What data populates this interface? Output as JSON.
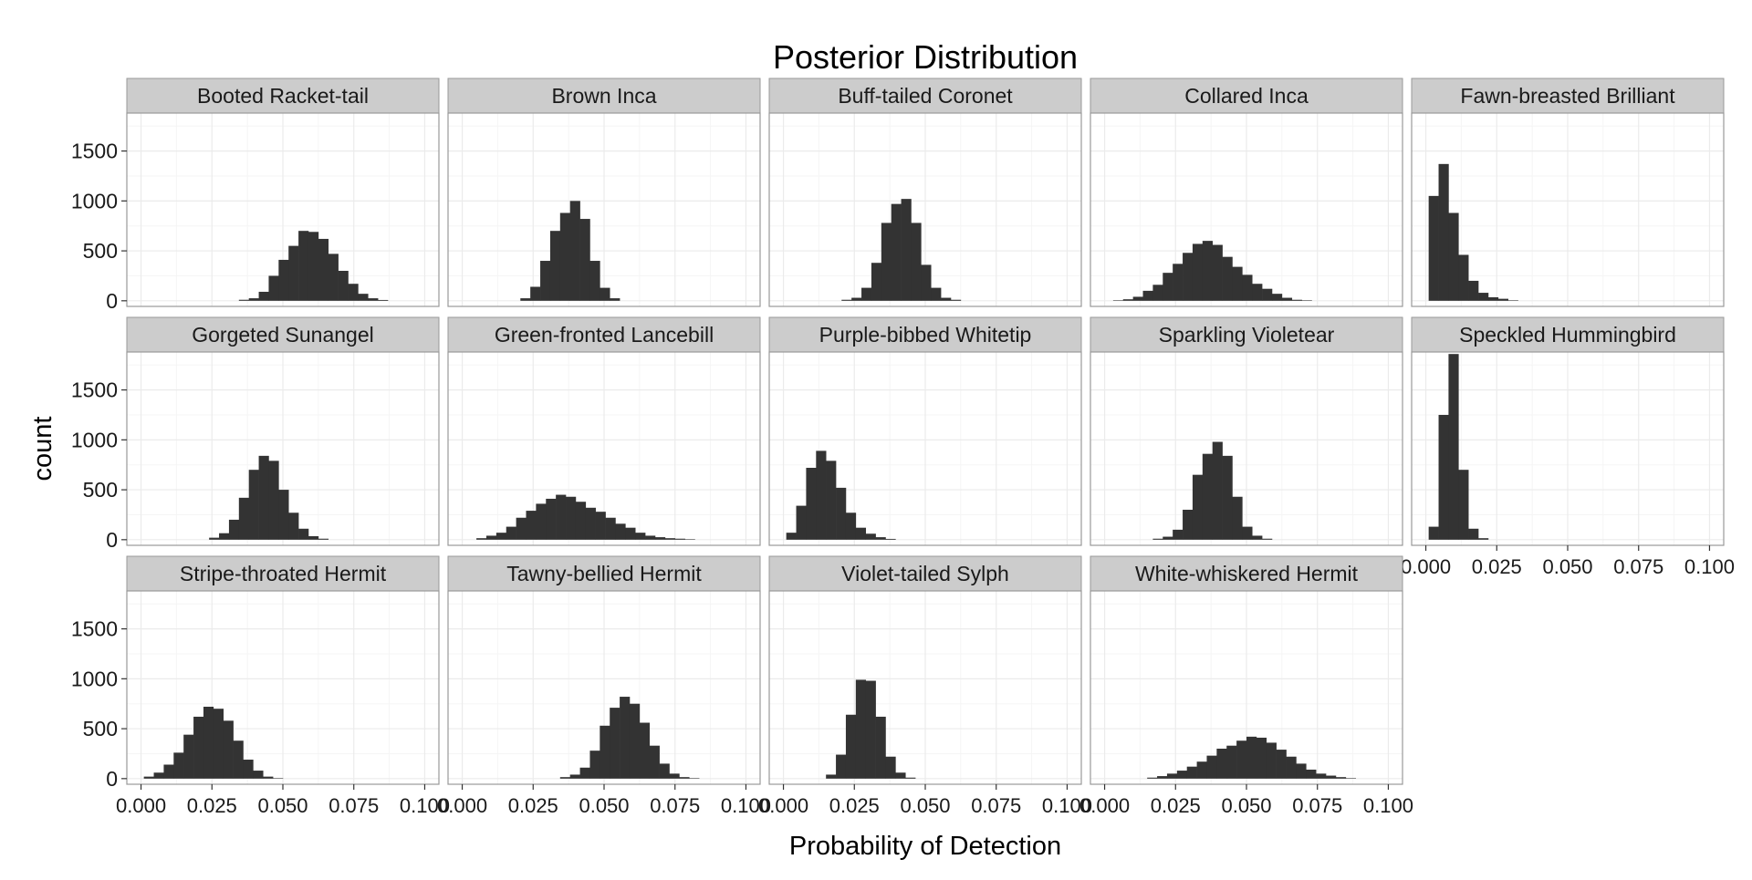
{
  "chart_data": {
    "type": "histogram",
    "title": "Posterior Distribution",
    "xlabel": "Probability of Detection",
    "ylabel": "count",
    "xlim": [
      0,
      0.1
    ],
    "ylim": [
      0,
      2000
    ],
    "x_ticks": [
      0,
      0.025,
      0.05,
      0.075,
      0.1
    ],
    "x_tick_labels": [
      "0.000",
      "0.025",
      "0.050",
      "0.075",
      "0.100"
    ],
    "y_ticks": [
      0,
      500,
      1000,
      1500
    ],
    "y_tick_labels": [
      "0",
      "500",
      "1000",
      "1500"
    ],
    "grid": true,
    "bin_width": 0.0035,
    "layout": {
      "rows": 3,
      "cols": 5
    },
    "colors": {
      "bar": "#333333",
      "strip": "#cccccc",
      "panel_border": "#999999",
      "grid_major": "#ebebeb",
      "grid_minor": "#f5f5f5"
    },
    "panels": [
      {
        "name": "Booted Racket-tail",
        "start": 0.0345,
        "counts": [
          10,
          25,
          90,
          250,
          410,
          550,
          700,
          690,
          620,
          470,
          300,
          170,
          70,
          25,
          8
        ]
      },
      {
        "name": "Brown Inca",
        "start": 0.0205,
        "counts": [
          25,
          140,
          400,
          700,
          880,
          1000,
          820,
          400,
          130,
          25
        ]
      },
      {
        "name": "Buff-tailed Coronet",
        "start": 0.0205,
        "counts": [
          10,
          30,
          130,
          380,
          780,
          970,
          1020,
          780,
          360,
          130,
          30,
          10
        ]
      },
      {
        "name": "Collared Inca",
        "start": 0.003,
        "counts": [
          5,
          15,
          40,
          100,
          160,
          280,
          370,
          480,
          570,
          600,
          560,
          440,
          340,
          260,
          170,
          120,
          70,
          30,
          10,
          5
        ]
      },
      {
        "name": "Fawn-breasted Brilliant",
        "start": 0.001,
        "counts": [
          1050,
          1370,
          880,
          460,
          200,
          80,
          35,
          20,
          5
        ]
      },
      {
        "name": "Gorgeted Sunangel",
        "start": 0.024,
        "counts": [
          20,
          65,
          200,
          420,
          700,
          840,
          790,
          500,
          270,
          110,
          35,
          10
        ]
      },
      {
        "name": "Green-fronted Lancebill",
        "start": 0.005,
        "counts": [
          15,
          40,
          70,
          130,
          220,
          290,
          360,
          410,
          450,
          430,
          380,
          320,
          280,
          220,
          160,
          120,
          70,
          40,
          25,
          15,
          10,
          5
        ]
      },
      {
        "name": "Purple-bibbed Whitetip",
        "start": 0.001,
        "counts": [
          70,
          340,
          720,
          890,
          790,
          520,
          270,
          120,
          60,
          25,
          8
        ]
      },
      {
        "name": "Sparkling Violetear",
        "start": 0.017,
        "counts": [
          10,
          30,
          100,
          300,
          650,
          860,
          980,
          840,
          430,
          130,
          40,
          10
        ]
      },
      {
        "name": "Speckled Hummingbird",
        "start": 0.001,
        "counts": [
          130,
          1250,
          1860,
          700,
          110,
          15
        ]
      },
      {
        "name": "Stripe-throated Hermit",
        "start": 0.001,
        "counts": [
          20,
          60,
          140,
          260,
          440,
          620,
          720,
          700,
          580,
          380,
          190,
          80,
          20,
          5
        ]
      },
      {
        "name": "Tawny-bellied Hermit",
        "start": 0.0345,
        "counts": [
          15,
          40,
          110,
          280,
          530,
          710,
          820,
          750,
          560,
          330,
          150,
          50,
          15,
          5
        ]
      },
      {
        "name": "Violet-tailed Sylph",
        "start": 0.015,
        "counts": [
          40,
          240,
          640,
          990,
          980,
          620,
          220,
          60,
          10
        ]
      },
      {
        "name": "White-whiskered Hermit",
        "start": 0.015,
        "counts": [
          10,
          25,
          50,
          80,
          120,
          170,
          230,
          300,
          330,
          380,
          420,
          410,
          360,
          290,
          220,
          150,
          90,
          50,
          30,
          15,
          5
        ]
      }
    ]
  }
}
